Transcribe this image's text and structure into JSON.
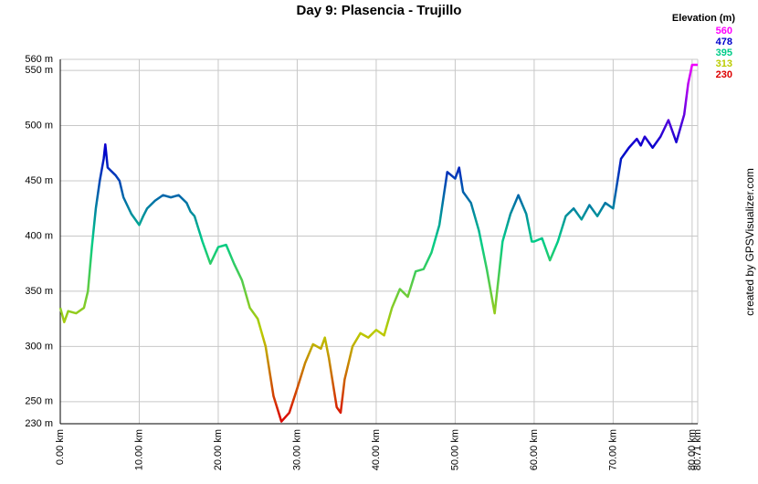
{
  "chart_data": {
    "type": "line",
    "title": "Day 9: Plasencia - Trujillo",
    "credit": "created by GPSVisualizer.com",
    "x": [
      0,
      0.5,
      1,
      2,
      3,
      3.5,
      4,
      4.5,
      5,
      5.5,
      5.7,
      6,
      7,
      7.5,
      8,
      9,
      10,
      10.5,
      11,
      12,
      13,
      14,
      15,
      16,
      16.5,
      17,
      18,
      19,
      20,
      21,
      22,
      23,
      24,
      25,
      26,
      27,
      28,
      29,
      30,
      31,
      32,
      33,
      33.5,
      34,
      35,
      35.5,
      36,
      37,
      38,
      39,
      40,
      41,
      42,
      43,
      44,
      45,
      46,
      47,
      48,
      49,
      50,
      50.5,
      51,
      52,
      53,
      54,
      55,
      56,
      57,
      58,
      59,
      59.7,
      60,
      61,
      62,
      63,
      64,
      65,
      66,
      67,
      68,
      69,
      70,
      71,
      72,
      73,
      73.5,
      74,
      75,
      76,
      77,
      78,
      79,
      79.5,
      80,
      80.71
    ],
    "values": [
      335,
      322,
      332,
      330,
      335,
      350,
      390,
      425,
      450,
      470,
      483,
      462,
      455,
      450,
      435,
      420,
      410,
      418,
      425,
      432,
      437,
      435,
      437,
      430,
      422,
      418,
      395,
      375,
      390,
      392,
      375,
      360,
      335,
      325,
      300,
      255,
      232,
      240,
      262,
      285,
      302,
      298,
      308,
      290,
      245,
      240,
      270,
      300,
      312,
      308,
      315,
      310,
      335,
      352,
      345,
      368,
      370,
      385,
      410,
      458,
      452,
      462,
      440,
      430,
      405,
      370,
      330,
      395,
      420,
      437,
      420,
      395,
      395,
      398,
      378,
      395,
      418,
      425,
      415,
      428,
      418,
      430,
      425,
      470,
      480,
      488,
      482,
      490,
      480,
      490,
      505,
      485,
      510,
      538,
      555,
      555
    ],
    "xlim": [
      0,
      80.71
    ],
    "ylim": [
      230,
      560
    ],
    "xticks": [
      {
        "value": 0,
        "label": "0.00 km"
      },
      {
        "value": 10,
        "label": "10.00 km"
      },
      {
        "value": 20,
        "label": "20.00 km"
      },
      {
        "value": 30,
        "label": "30.00 km"
      },
      {
        "value": 40,
        "label": "40.00 km"
      },
      {
        "value": 50,
        "label": "50.00 km"
      },
      {
        "value": 60,
        "label": "60.00 km"
      },
      {
        "value": 70,
        "label": "70.00 km"
      },
      {
        "value": 80,
        "label": "80.00 km"
      },
      {
        "value": 80.71,
        "label": "80.71 km"
      }
    ],
    "yticks": [
      {
        "value": 230,
        "label": "230 m"
      },
      {
        "value": 250,
        "label": "250 m"
      },
      {
        "value": 300,
        "label": "300 m"
      },
      {
        "value": 350,
        "label": "350 m"
      },
      {
        "value": 400,
        "label": "400 m"
      },
      {
        "value": 450,
        "label": "450 m"
      },
      {
        "value": 500,
        "label": "500 m"
      },
      {
        "value": 550,
        "label": "550 m"
      },
      {
        "value": 560,
        "label": "560 m"
      }
    ],
    "grid": true,
    "color_scale": {
      "title": "Elevation (m)",
      "stops": [
        {
          "value": 560,
          "color": "#ff00ff"
        },
        {
          "value": 478,
          "color": "#0000cc"
        },
        {
          "value": 395,
          "color": "#00cc88"
        },
        {
          "value": 313,
          "color": "#bbcc00"
        },
        {
          "value": 230,
          "color": "#dd0000"
        }
      ]
    }
  }
}
